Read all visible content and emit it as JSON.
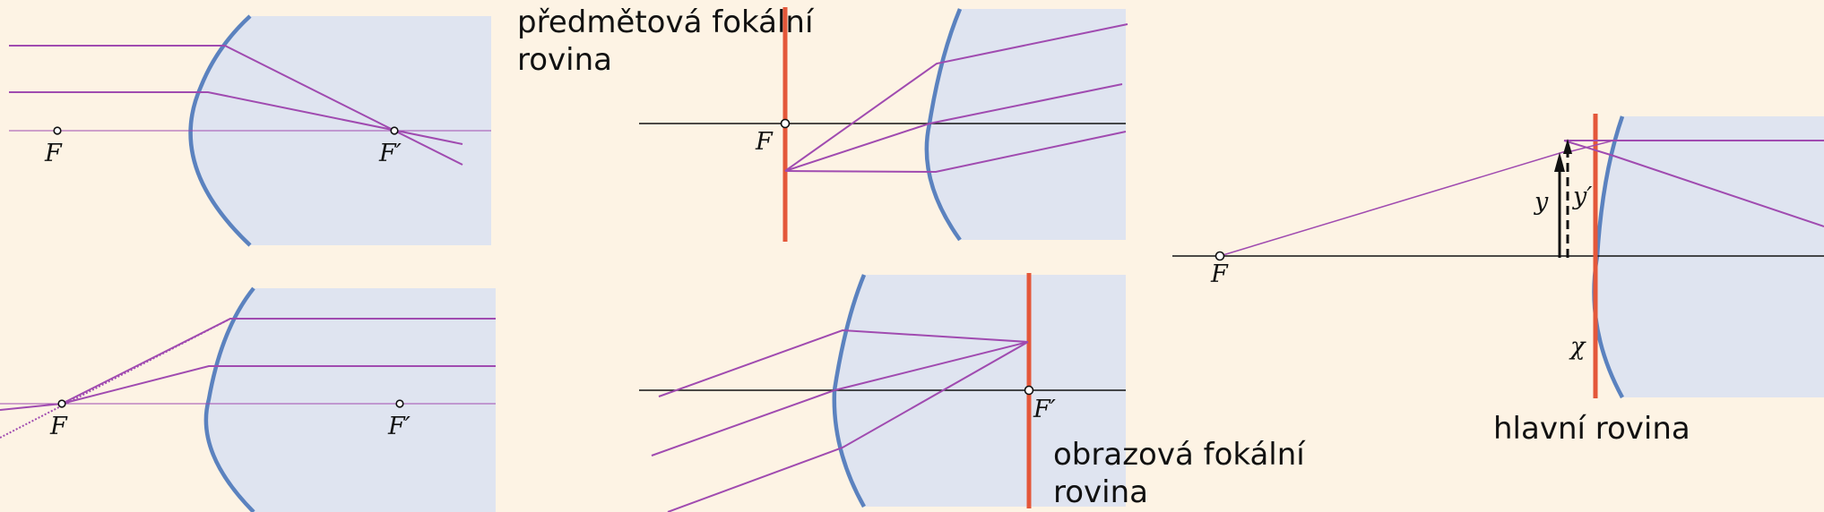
{
  "labels": {
    "object_focal_plane": [
      "předmětová fokální",
      "rovina"
    ],
    "image_focal_plane": [
      "obrazová fokální",
      "rovina"
    ],
    "principal_plane": "hlavní rovina"
  },
  "math": {
    "F": "F",
    "F_prime": "F′",
    "y": "y",
    "y_prime": "y′",
    "chi": "χ"
  },
  "colors": {
    "background": "#fdf3e4",
    "medium": "#dfe4f0",
    "surface": "#5b82bf",
    "ray": "#a04bb0",
    "focal_plane": "#e4573a",
    "axis": "#111111"
  }
}
